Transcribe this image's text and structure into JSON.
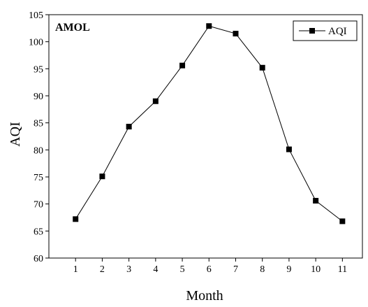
{
  "chart_data": {
    "type": "line",
    "title": "AMOL",
    "xlabel": "Month",
    "ylabel": "AQI",
    "x": [
      1,
      2,
      3,
      4,
      5,
      6,
      7,
      8,
      9,
      10,
      11
    ],
    "series": [
      {
        "name": "AQI",
        "values": [
          67.2,
          75.1,
          84.3,
          89.0,
          95.6,
          102.9,
          101.5,
          95.2,
          80.1,
          70.6,
          66.8
        ]
      }
    ],
    "xlim": [
      0,
      11.75
    ],
    "ylim": [
      60,
      105
    ],
    "xticks": [
      1,
      2,
      3,
      4,
      5,
      6,
      7,
      8,
      9,
      10,
      11
    ],
    "yticks": [
      60,
      65,
      70,
      75,
      80,
      85,
      90,
      95,
      100,
      105
    ],
    "grid": false,
    "legend": "top-right",
    "colors": {
      "line": "#000000",
      "marker": "#000000"
    }
  }
}
